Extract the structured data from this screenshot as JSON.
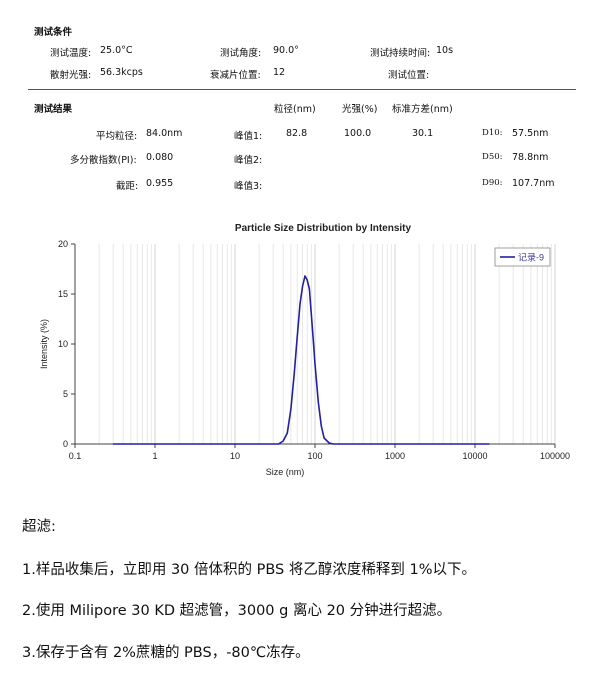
{
  "conditions": {
    "title": "测试条件",
    "temp_label": "测试温度:",
    "temp_value": "25.0°C",
    "angle_label": "测试角度:",
    "angle_value": "90.0°",
    "duration_label": "测试持续时间:",
    "duration_value": "10s",
    "intensity_label": "散射光强:",
    "intensity_value": "56.3kcps",
    "attenuator_label": "衰减片位置:",
    "attenuator_value": "12",
    "position_label": "测试位置:",
    "position_value": ""
  },
  "results": {
    "title": "测试结果",
    "col_size": "粒径(nm)",
    "col_pct": "光强(%)",
    "col_sd": "标准方差(nm)",
    "avg_label": "平均粒径:",
    "avg_value": "84.0nm",
    "pdi_label": "多分散指数(PI):",
    "pdi_value": "0.080",
    "intercept_label": "截距:",
    "intercept_value": "0.955",
    "peak1_label": "峰值1:",
    "peak1_size": "82.8",
    "peak1_pct": "100.0",
    "peak1_sd": "30.1",
    "peak2_label": "峰值2:",
    "peak3_label": "峰值3:",
    "d10_label": "D10:",
    "d10_value": "57.5nm",
    "d50_label": "D50:",
    "d50_value": "78.8nm",
    "d90_label": "D90:",
    "d90_value": "107.7nm"
  },
  "chart_data": {
    "type": "line",
    "title": "Particle Size Distribution by Intensity",
    "xlabel": "Size (nm)",
    "ylabel": "Intensity (%)",
    "x_scale": "log",
    "xlim": [
      0.1,
      100000
    ],
    "ylim": [
      0,
      20
    ],
    "x_ticks": [
      "0.1",
      "1",
      "10",
      "100",
      "1000",
      "10000",
      "100000"
    ],
    "y_ticks": [
      "0",
      "5",
      "10",
      "15",
      "20"
    ],
    "grid": true,
    "legend_position": "top-right",
    "series_color": "#1f1fa8",
    "series": [
      {
        "name": "记录-9",
        "x": [
          0.3,
          1,
          10,
          35,
          40,
          45,
          50,
          55,
          60,
          65,
          70,
          75,
          80,
          85,
          90,
          95,
          100,
          110,
          120,
          130,
          150,
          170,
          200,
          1000,
          10000,
          15000
        ],
        "y": [
          0,
          0,
          0,
          0,
          0.3,
          1.1,
          3.5,
          7.0,
          10.8,
          14.0,
          15.8,
          16.8,
          16.4,
          15.5,
          13.0,
          10.5,
          8.0,
          4.2,
          1.8,
          0.6,
          0.1,
          0,
          0,
          0,
          0,
          0
        ]
      }
    ]
  },
  "notes": {
    "heading": "超滤:",
    "step1": "1.样品收集后，立即用 30 倍体积的 PBS 将乙醇浓度稀释到 1%以下。",
    "step2": "2.使用 Milipore 30 KD 超滤管，3000 g 离心 20 分钟进行超滤。",
    "step3": "3.保存于含有 2%蔗糖的 PBS，-80℃冻存。"
  }
}
